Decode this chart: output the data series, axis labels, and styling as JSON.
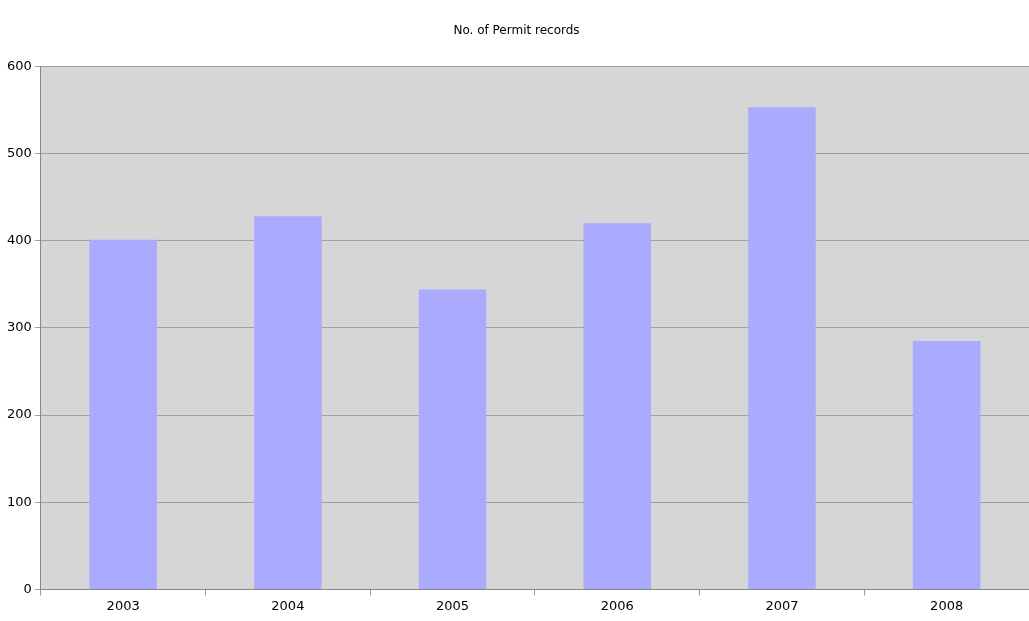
{
  "chart_data": {
    "type": "bar",
    "title": "No. of Permit records",
    "categories": [
      "2003",
      "2004",
      "2005",
      "2006",
      "2007",
      "2008"
    ],
    "values": [
      401,
      428,
      344,
      420,
      553,
      285
    ],
    "color": "#aaaaff",
    "ylim": [
      0,
      600
    ],
    "yticks": [
      0,
      100,
      200,
      300,
      400,
      500,
      600
    ],
    "grid": "y",
    "legend": false
  }
}
